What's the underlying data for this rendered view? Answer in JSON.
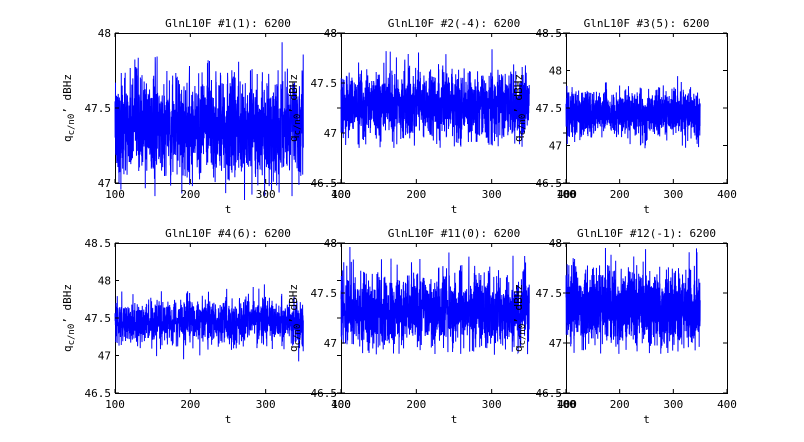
{
  "chart_data": [
    {
      "type": "line",
      "title": "GlnL10F #1(1): 6200",
      "xlabel": "t",
      "ylabel": "q_c/n0, dBHz",
      "xlim": [
        100,
        400
      ],
      "ylim": [
        47,
        48
      ],
      "xticks": [
        "100",
        "200",
        "300",
        "400"
      ],
      "yticks": [
        "47",
        "47.5",
        "48"
      ],
      "x_range": [
        100,
        350
      ],
      "mean": 47.38,
      "spread": 0.17,
      "min": 46.88,
      "max": 47.97,
      "color": "#0000ff"
    },
    {
      "type": "line",
      "title": "GlnL10F #2(-4): 6200",
      "xlabel": "t",
      "ylabel": "q_c/n0, dBHz",
      "xlim": [
        100,
        400
      ],
      "ylim": [
        46.5,
        48
      ],
      "xticks": [
        "100",
        "200",
        "300",
        "400"
      ],
      "yticks": [
        "46.5",
        "47",
        "47.5",
        "48"
      ],
      "x_range": [
        100,
        350
      ],
      "mean": 47.28,
      "spread": 0.17,
      "min": 46.85,
      "max": 47.88,
      "color": "#0000ff"
    },
    {
      "type": "line",
      "title": "GlnL10F #3(5): 6200",
      "xlabel": "t",
      "ylabel": "q_c/n0, dBHz",
      "xlim": [
        100,
        400
      ],
      "ylim": [
        46.5,
        48.5
      ],
      "xticks": [
        "100",
        "200",
        "300",
        "400"
      ],
      "yticks": [
        "46.5",
        "47",
        "47.5",
        "48",
        "48.5"
      ],
      "x_range": [
        100,
        350
      ],
      "mean": 47.43,
      "spread": 0.15,
      "min": 46.9,
      "max": 47.97,
      "color": "#0000ff"
    },
    {
      "type": "line",
      "title": "GlnL10F #4(6): 6200",
      "xlabel": "t",
      "ylabel": "q_c/n0, dBHz",
      "xlim": [
        100,
        400
      ],
      "ylim": [
        46.5,
        48.5
      ],
      "xticks": [
        "100",
        "200",
        "300",
        "400"
      ],
      "yticks": [
        "46.5",
        "47",
        "47.5",
        "48",
        "48.5"
      ],
      "x_range": [
        100,
        350
      ],
      "mean": 47.45,
      "spread": 0.15,
      "min": 46.92,
      "max": 48.05,
      "color": "#0000ff"
    },
    {
      "type": "line",
      "title": "GlnL10F #11(0): 6200",
      "xlabel": "t",
      "ylabel": "q_c/n0, dBHz",
      "xlim": [
        100,
        400
      ],
      "ylim": [
        46.5,
        48
      ],
      "xticks": [
        "100",
        "200",
        "300",
        "400"
      ],
      "yticks": [
        "46.5",
        "47",
        "47.5",
        "48"
      ],
      "x_range": [
        100,
        350
      ],
      "mean": 47.32,
      "spread": 0.18,
      "min": 46.88,
      "max": 47.98,
      "color": "#0000ff"
    },
    {
      "type": "line",
      "title": "GlnL10F #12(-1): 6200",
      "xlabel": "t",
      "ylabel": "q_c/n0, dBHz",
      "xlim": [
        100,
        400
      ],
      "ylim": [
        46.5,
        48
      ],
      "xticks": [
        "100",
        "200",
        "300",
        "400"
      ],
      "yticks": [
        "46.5",
        "47",
        "47.5",
        "48"
      ],
      "x_range": [
        100,
        350
      ],
      "mean": 47.35,
      "spread": 0.18,
      "min": 46.88,
      "max": 47.98,
      "color": "#0000ff"
    }
  ]
}
